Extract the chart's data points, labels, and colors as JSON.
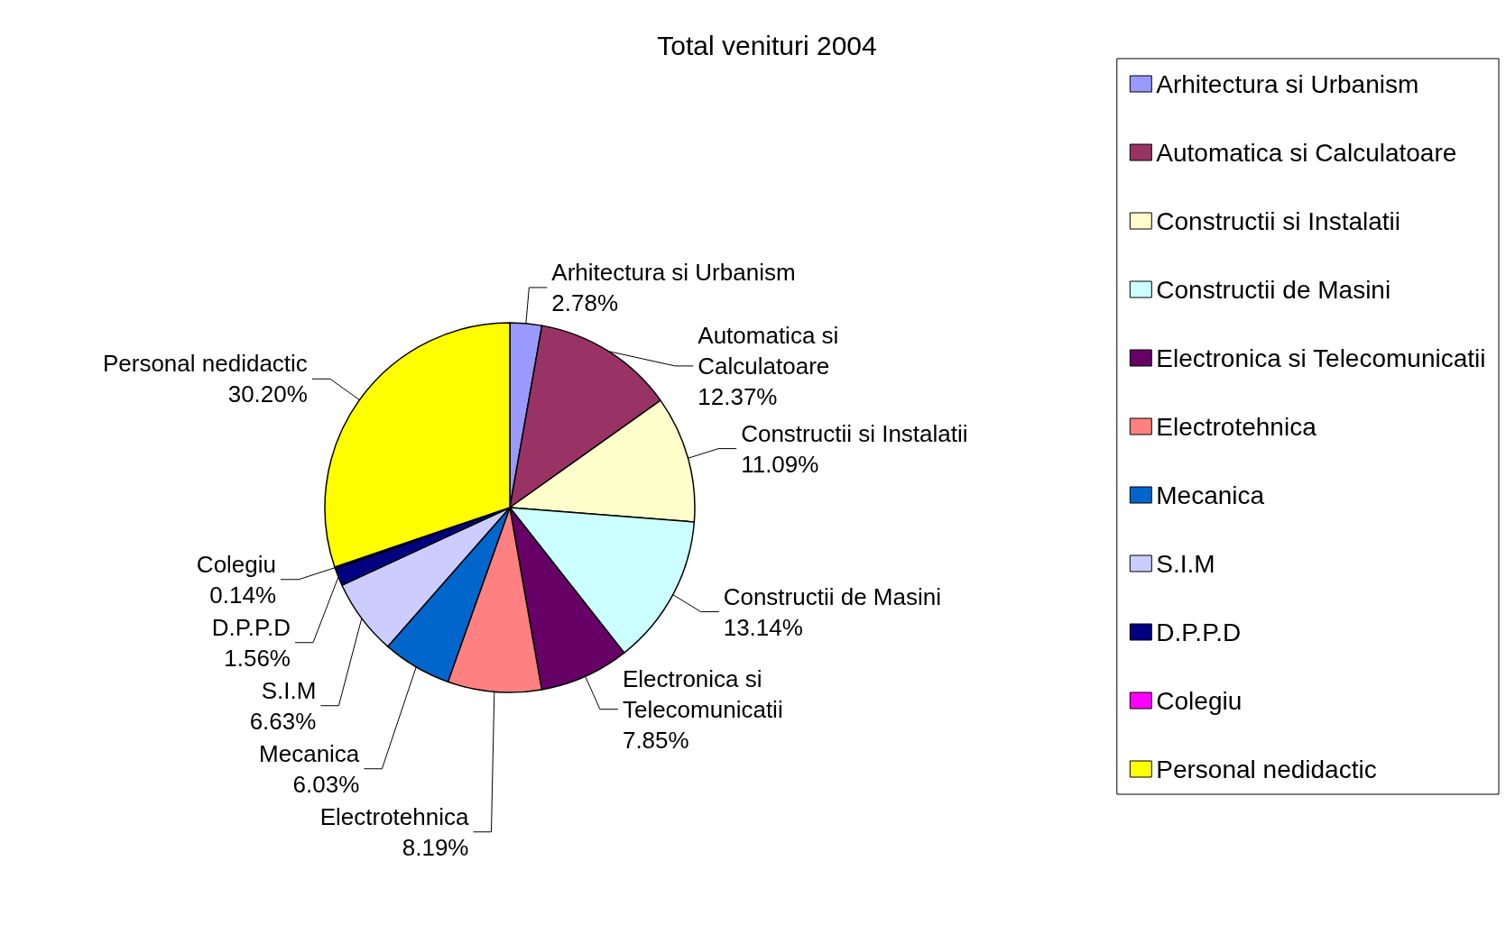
{
  "chart_data": {
    "type": "pie",
    "title": "Total venituri 2004",
    "categories": [
      "Arhitectura si Urbanism",
      "Automatica si Calculatoare",
      "Constructii si Instalatii",
      "Constructii de Masini",
      "Electronica si Telecomunicatii",
      "Electrotehnica",
      "Mecanica",
      "S.I.M",
      "D.P.P.D",
      "Colegiu",
      "Personal nedidactic"
    ],
    "values": [
      2.78,
      12.37,
      11.09,
      13.14,
      7.85,
      8.19,
      6.03,
      6.63,
      1.56,
      0.14,
      30.2
    ],
    "value_labels": [
      "2.78%",
      "12.37%",
      "11.09%",
      "13.14%",
      "7.85%",
      "8.19%",
      "6.03%",
      "6.63%",
      "1.56%",
      "0.14%",
      "30.20%"
    ],
    "colors": [
      "#9999ff",
      "#993366",
      "#ffffcc",
      "#ccffff",
      "#660066",
      "#ff8080",
      "#0066cc",
      "#ccccff",
      "#000080",
      "#ff00ff",
      "#ffff00"
    ],
    "legend": "right"
  }
}
